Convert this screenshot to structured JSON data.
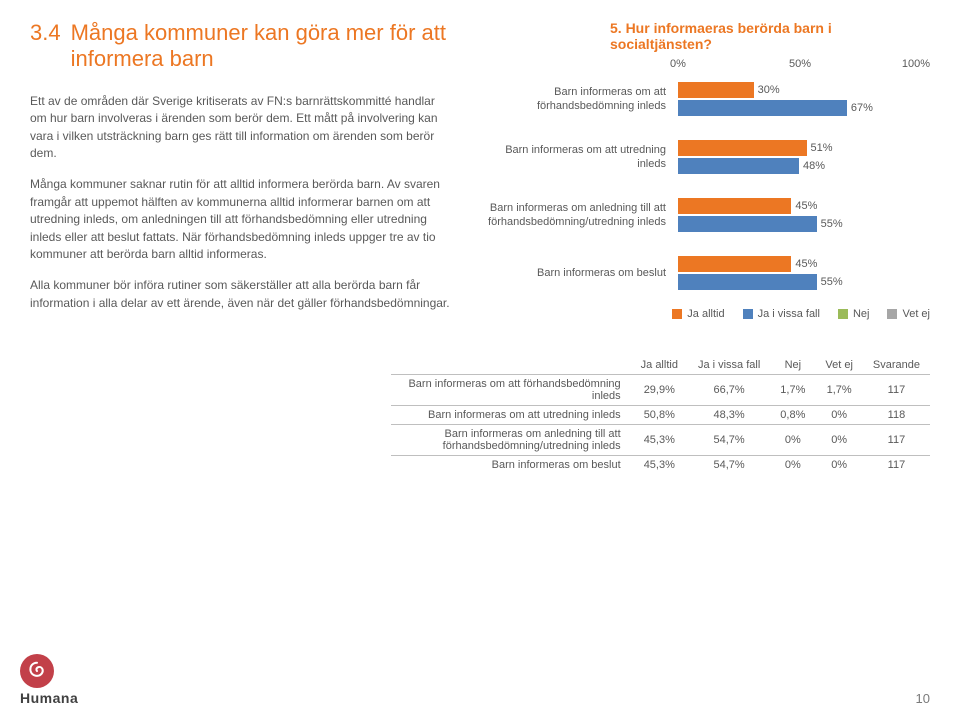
{
  "heading": {
    "number": "3.4",
    "text": "Många kommuner kan göra mer för att informera barn"
  },
  "paragraphs": [
    "Ett av de områden där Sverige kritiserats av FN:s barnrättskommitté handlar om hur barn involveras i ärenden som berör dem. Ett mått på involvering kan vara i vilken utsträckning barn ges rätt till information om ärenden som berör dem.",
    "Många kommuner saknar rutin för att alltid informera berörda barn. Av svaren framgår att uppemot hälften av kommunerna alltid informerar barnen om att utredning inleds, om anledningen till att förhandsbedömning eller utredning inleds eller att beslut fattats. När förhandsbedömning inleds uppger tre av tio kommuner att berörda barn alltid informeras.",
    "Alla kommuner bör införa rutiner som säkerställer att alla berörda barn får information i alla delar av ett ärende, även när det gäller förhandsbedömningar."
  ],
  "chart": {
    "title": "5. Hur informaeras berörda barn i socialtjänsten?",
    "axis": [
      "0%",
      "50%",
      "100%"
    ],
    "colors": {
      "ja_alltid": "#ec7723",
      "ja_vissa": "#4f81bd",
      "nej": "#9bbb59",
      "vet_ej": "#a6a6a6"
    },
    "legend": [
      "Ja alltid",
      "Ja i vissa fall",
      "Nej",
      "Vet ej"
    ],
    "rows": [
      {
        "label": "Barn informeras om att förhandsbedömning inleds",
        "values": [
          30,
          67
        ]
      },
      {
        "label": "Barn informeras om att utredning inleds",
        "values": [
          51,
          48
        ]
      },
      {
        "label": "Barn informeras om anledning till att förhandsbedömning/utredning inleds",
        "values": [
          45,
          55
        ]
      },
      {
        "label": "Barn informeras om beslut",
        "values": [
          45,
          55
        ]
      }
    ]
  },
  "table": {
    "headers": [
      "Ja alltid",
      "Ja i vissa fall",
      "Nej",
      "Vet ej",
      "Svarande"
    ],
    "rows": [
      {
        "label": "Barn informeras om att förhandsbedömning inleds",
        "cells": [
          "29,9%",
          "66,7%",
          "1,7%",
          "1,7%",
          "117"
        ]
      },
      {
        "label": "Barn informeras om att utredning inleds",
        "cells": [
          "50,8%",
          "48,3%",
          "0,8%",
          "0%",
          "118"
        ]
      },
      {
        "label": "Barn informeras om anledning till att förhandsbedömning/utredning inleds",
        "cells": [
          "45,3%",
          "54,7%",
          "0%",
          "0%",
          "117"
        ]
      },
      {
        "label": "Barn informeras om beslut",
        "cells": [
          "45,3%",
          "54,7%",
          "0%",
          "0%",
          "117"
        ]
      }
    ]
  },
  "footer": {
    "brand": "Humana",
    "page_number": "10"
  }
}
